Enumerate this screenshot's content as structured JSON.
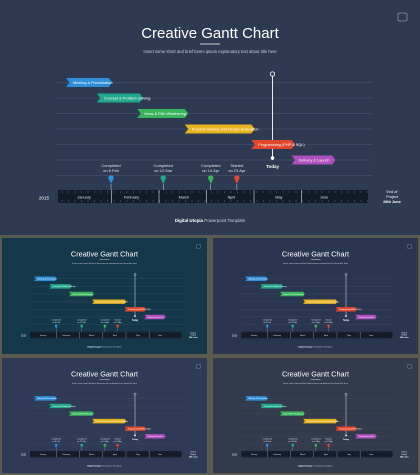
{
  "slide": {
    "title": "Creative Gantt Chart",
    "subtitle": "Insert some short and brief lorem ipsum explanatory text about title here",
    "footer_brand": "Digital Utopia",
    "footer_suffix": " Powerpoint Template",
    "year": "2015",
    "end_label_1": "End of",
    "end_label_2": "Project",
    "end_label_3": "28th June",
    "today_label": "Today",
    "months": [
      "January",
      "February",
      "March",
      "April",
      "May",
      "June"
    ],
    "tasks": [
      {
        "label": "Meeting & Presentation",
        "color": "#2e8fd8",
        "start": 0,
        "end": 0.9
      },
      {
        "label": "Concept & Problem Solving",
        "color": "#21a88a",
        "start": 0.65,
        "end": 1.55
      },
      {
        "label": "Ideas & Fifth Weathering",
        "color": "#38b45a",
        "start": 1.5,
        "end": 2.5
      },
      {
        "label": "Problem Solving and Design Evaluation",
        "color": "#e7b420",
        "start": 2.5,
        "end": 3.9
      },
      {
        "label": "Programming (PHP & SQL)",
        "color": "#e0472c",
        "start": 3.9,
        "end": 4.75
      },
      {
        "label": "Delivery & Launch",
        "color": "#b04fc0",
        "start": 4.75,
        "end": 5.6
      }
    ],
    "milestones": [
      {
        "label_1": "Completed",
        "label_2": "on 8 Feb",
        "color": "#2e8fd8",
        "pos": 1.2
      },
      {
        "label_1": "Completed",
        "label_2": "on 12 Mar",
        "color": "#21a88a",
        "pos": 2.3
      },
      {
        "label_1": "Completed",
        "label_2": "on 14 Apr",
        "color": "#38b45a",
        "pos": 3.3
      },
      {
        "label_1": "Started",
        "label_2": "on 23 Apr",
        "color": "#e0472c",
        "pos": 3.85
      }
    ],
    "today_pos": 4.6
  },
  "thumbnails": [
    {
      "name": "thumb1",
      "background": "#14384a"
    },
    {
      "name": "thumb2",
      "background": "#2a3650"
    },
    {
      "name": "thumb3",
      "background": "#2e3a56"
    },
    {
      "name": "thumb4",
      "background": "#323a4c"
    }
  ]
}
